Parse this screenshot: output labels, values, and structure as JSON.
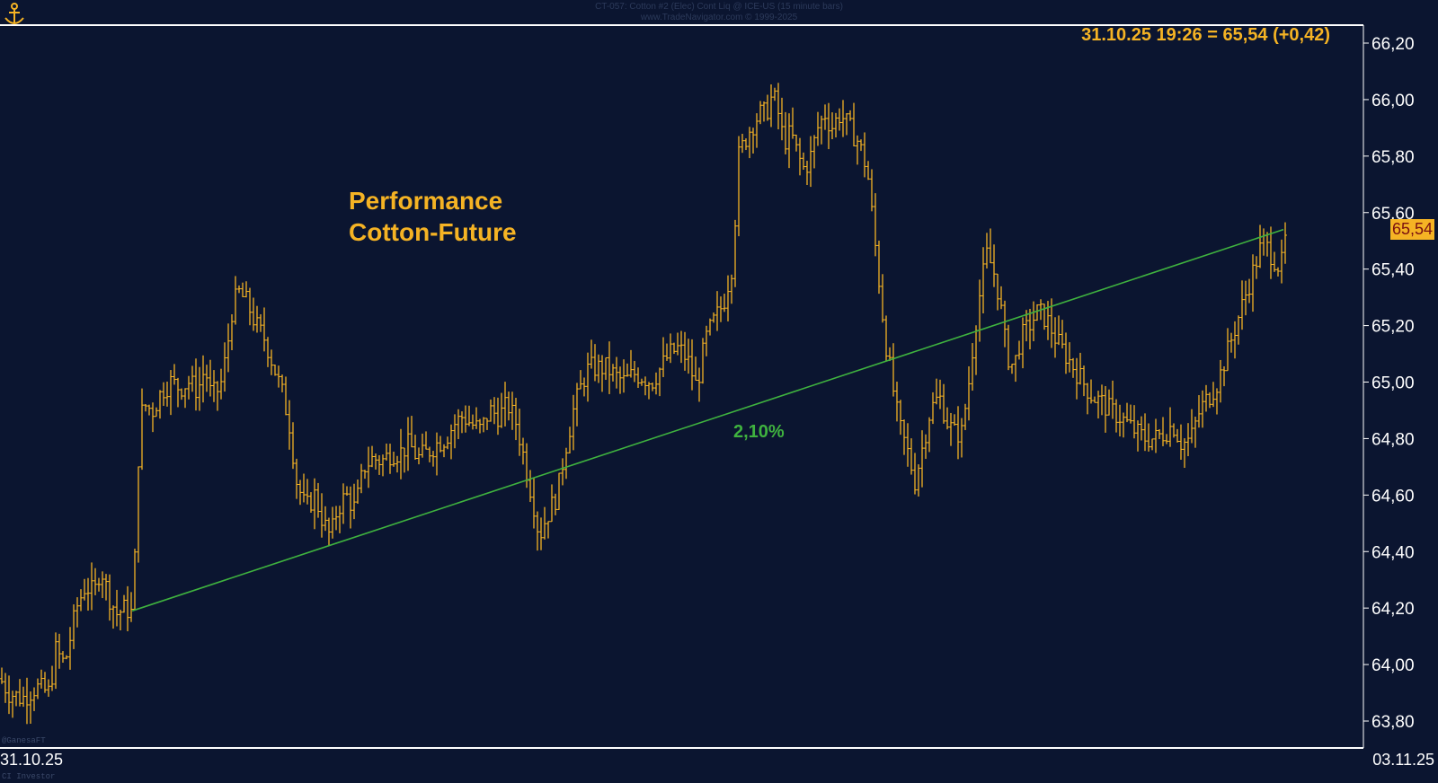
{
  "header": {
    "line1": "CT-057: Cotton #2 (Elec) Cont Liq @ ICE-US (15 minute bars)",
    "line2": "www.TradeNavigator.com © 1999-2025"
  },
  "readout": "31.10.25 19:26 = 65,54 (+0,42)",
  "annotation": {
    "title_line1": "Performance",
    "title_line2": "Cotton-Future",
    "performance": "2,10%"
  },
  "current_price_label": "65,54",
  "x_labels": {
    "start": "31.10.25",
    "end": "03.11.25"
  },
  "watermarks": {
    "bottom_left_1": "@GanesaFT",
    "bottom_left_2": "CI Investor"
  },
  "colors": {
    "background": "#0b1530",
    "bars": "#f5b324",
    "trendline": "#3fb23f",
    "axis": "#ffffff"
  },
  "chart_data": {
    "type": "bar",
    "subtype": "ohlc",
    "title": "Performance Cotton-Future",
    "y_ticks": [
      "63,80",
      "64,00",
      "64,20",
      "64,40",
      "64,60",
      "64,80",
      "65,00",
      "65,20",
      "65,40",
      "65,60",
      "65,80",
      "66,00",
      "66,20"
    ],
    "ylim": [
      63.72,
      66.26
    ],
    "x_range": [
      "31.10.25",
      "03.11.25"
    ],
    "grid": false,
    "price_path": [
      [
        0,
        63.95
      ],
      [
        10,
        63.9
      ],
      [
        25,
        63.88
      ],
      [
        40,
        63.92
      ],
      [
        55,
        63.9
      ],
      [
        62,
        64.05
      ],
      [
        72,
        64.0
      ],
      [
        85,
        64.2
      ],
      [
        95,
        64.28
      ],
      [
        105,
        64.25
      ],
      [
        112,
        64.35
      ],
      [
        120,
        64.25
      ],
      [
        130,
        64.18
      ],
      [
        140,
        64.2
      ],
      [
        147,
        64.18
      ],
      [
        152,
        64.5
      ],
      [
        155,
        64.85
      ],
      [
        160,
        64.92
      ],
      [
        170,
        64.9
      ],
      [
        180,
        64.97
      ],
      [
        190,
        65.0
      ],
      [
        200,
        64.98
      ],
      [
        210,
        65.0
      ],
      [
        220,
        64.97
      ],
      [
        228,
        65.05
      ],
      [
        235,
        64.95
      ],
      [
        245,
        64.98
      ],
      [
        252,
        65.1
      ],
      [
        258,
        65.25
      ],
      [
        265,
        65.32
      ],
      [
        275,
        65.28
      ],
      [
        285,
        65.2
      ],
      [
        295,
        65.15
      ],
      [
        305,
        65.05
      ],
      [
        315,
        64.95
      ],
      [
        322,
        64.85
      ],
      [
        330,
        64.65
      ],
      [
        340,
        64.55
      ],
      [
        350,
        64.6
      ],
      [
        360,
        64.5
      ],
      [
        368,
        64.45
      ],
      [
        375,
        64.55
      ],
      [
        385,
        64.6
      ],
      [
        395,
        64.55
      ],
      [
        405,
        64.7
      ],
      [
        415,
        64.73
      ],
      [
        425,
        64.72
      ],
      [
        435,
        64.75
      ],
      [
        445,
        64.75
      ],
      [
        455,
        64.78
      ],
      [
        465,
        64.73
      ],
      [
        475,
        64.75
      ],
      [
        485,
        64.78
      ],
      [
        495,
        64.8
      ],
      [
        505,
        64.85
      ],
      [
        515,
        64.88
      ],
      [
        525,
        64.85
      ],
      [
        535,
        64.83
      ],
      [
        545,
        64.9
      ],
      [
        555,
        64.88
      ],
      [
        565,
        64.92
      ],
      [
        575,
        64.85
      ],
      [
        585,
        64.7
      ],
      [
        595,
        64.55
      ],
      [
        600,
        64.45
      ],
      [
        605,
        64.5
      ],
      [
        612,
        64.55
      ],
      [
        620,
        64.6
      ],
      [
        628,
        64.75
      ],
      [
        638,
        64.9
      ],
      [
        648,
        65.0
      ],
      [
        655,
        65.05
      ],
      [
        665,
        65.05
      ],
      [
        675,
        65.05
      ],
      [
        685,
        65.02
      ],
      [
        695,
        65.0
      ],
      [
        705,
        65.03
      ],
      [
        715,
        65.02
      ],
      [
        725,
        65.0
      ],
      [
        735,
        65.05
      ],
      [
        745,
        65.1
      ],
      [
        755,
        65.12
      ],
      [
        765,
        65.08
      ],
      [
        775,
        64.98
      ],
      [
        785,
        65.15
      ],
      [
        795,
        65.22
      ],
      [
        805,
        65.28
      ],
      [
        815,
        65.42
      ],
      [
        822,
        65.8
      ],
      [
        828,
        65.85
      ],
      [
        835,
        65.9
      ],
      [
        845,
        65.95
      ],
      [
        852,
        65.95
      ],
      [
        860,
        66.02
      ],
      [
        866,
        65.95
      ],
      [
        872,
        65.85
      ],
      [
        880,
        65.88
      ],
      [
        888,
        65.8
      ],
      [
        895,
        65.75
      ],
      [
        902,
        65.8
      ],
      [
        910,
        65.9
      ],
      [
        918,
        65.95
      ],
      [
        925,
        65.9
      ],
      [
        935,
        65.95
      ],
      [
        945,
        65.9
      ],
      [
        955,
        65.85
      ],
      [
        965,
        65.75
      ],
      [
        970,
        65.6
      ],
      [
        975,
        65.45
      ],
      [
        980,
        65.3
      ],
      [
        985,
        65.15
      ],
      [
        990,
        65.05
      ],
      [
        1000,
        64.85
      ],
      [
        1010,
        64.75
      ],
      [
        1018,
        64.65
      ],
      [
        1025,
        64.75
      ],
      [
        1035,
        64.9
      ],
      [
        1045,
        64.95
      ],
      [
        1055,
        64.85
      ],
      [
        1062,
        64.82
      ],
      [
        1070,
        64.82
      ],
      [
        1078,
        65.0
      ],
      [
        1085,
        65.2
      ],
      [
        1092,
        65.35
      ],
      [
        1098,
        65.45
      ],
      [
        1105,
        65.4
      ],
      [
        1112,
        65.3
      ],
      [
        1120,
        65.1
      ],
      [
        1128,
        65.05
      ],
      [
        1135,
        65.15
      ],
      [
        1145,
        65.2
      ],
      [
        1155,
        65.25
      ],
      [
        1165,
        65.22
      ],
      [
        1175,
        65.15
      ],
      [
        1185,
        65.1
      ],
      [
        1195,
        65.05
      ],
      [
        1205,
        65.0
      ],
      [
        1215,
        64.95
      ],
      [
        1225,
        64.93
      ],
      [
        1235,
        64.9
      ],
      [
        1245,
        64.88
      ],
      [
        1255,
        64.85
      ],
      [
        1265,
        64.82
      ],
      [
        1275,
        64.8
      ],
      [
        1285,
        64.8
      ],
      [
        1295,
        64.82
      ],
      [
        1305,
        64.85
      ],
      [
        1315,
        64.78
      ],
      [
        1325,
        64.8
      ],
      [
        1335,
        64.9
      ],
      [
        1345,
        64.95
      ],
      [
        1355,
        65.0
      ],
      [
        1365,
        65.1
      ],
      [
        1375,
        65.2
      ],
      [
        1385,
        65.3
      ],
      [
        1395,
        65.4
      ],
      [
        1405,
        65.5
      ],
      [
        1415,
        65.45
      ],
      [
        1425,
        65.4
      ],
      [
        1432,
        65.54
      ]
    ],
    "trendline": {
      "start": 64.19,
      "end": 65.54,
      "label": "2,10%"
    },
    "last": {
      "value": 65.54,
      "change": 0.42
    }
  }
}
